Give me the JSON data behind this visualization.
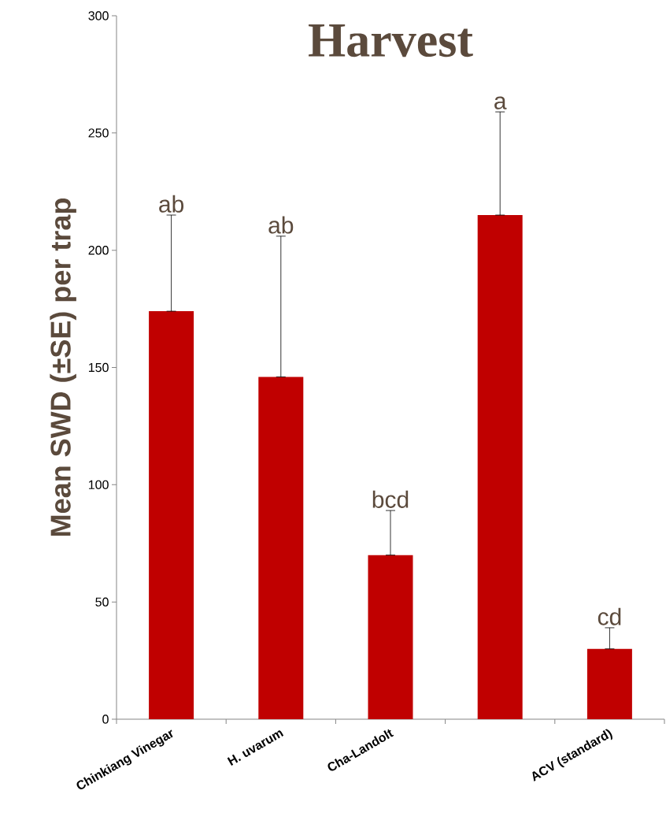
{
  "chart_data": {
    "type": "bar",
    "title": "Harvest",
    "ylabel": "Mean SWD (±SE) per trap",
    "categories": [
      "Chinkiang Vinegar",
      "H. uvarum",
      "Cha-Landolt",
      null,
      "ACV (standard)"
    ],
    "values": [
      174,
      146,
      70,
      215,
      30
    ],
    "errors": [
      [
        174,
        215
      ],
      [
        146,
        206
      ],
      [
        70,
        89
      ],
      [
        215,
        259
      ],
      [
        30,
        39
      ]
    ],
    "color": "#c00000",
    "ylim": [
      0,
      300
    ],
    "yticks": [
      0,
      50,
      100,
      150,
      200,
      250,
      300
    ],
    "annotations": [
      "ab",
      "ab",
      "bcd",
      "a",
      "cd"
    ],
    "grid": false
  }
}
